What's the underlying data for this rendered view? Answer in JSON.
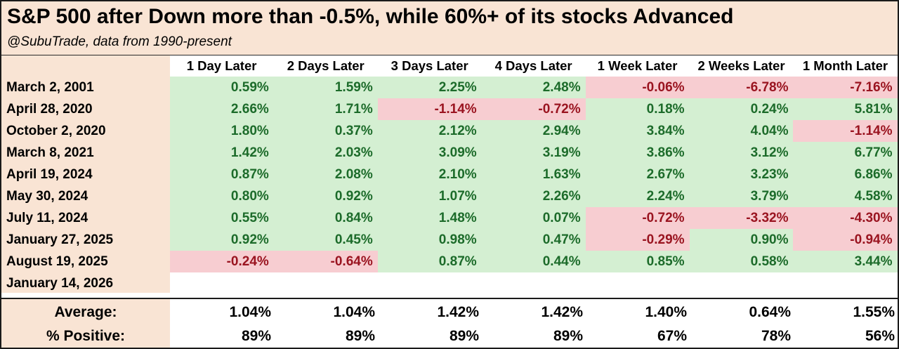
{
  "title": "S&P 500 after Down more than -0.5%, while 60%+ of its stocks Advanced",
  "subtitle": "@SubuTrade, data from 1990-present",
  "columns": [
    "1 Day Later",
    "2 Days Later",
    "3 Days Later",
    "4 Days Later",
    "1 Week Later",
    "2 Weeks Later",
    "1 Month Later"
  ],
  "rows": [
    {
      "date": "March 2, 2001",
      "values": [
        "0.59%",
        "1.59%",
        "2.25%",
        "2.48%",
        "-0.06%",
        "-6.78%",
        "-7.16%"
      ]
    },
    {
      "date": "April 28, 2020",
      "values": [
        "2.66%",
        "1.71%",
        "-1.14%",
        "-0.72%",
        "0.18%",
        "0.24%",
        "5.81%"
      ]
    },
    {
      "date": "October 2, 2020",
      "values": [
        "1.80%",
        "0.37%",
        "2.12%",
        "2.94%",
        "3.84%",
        "4.04%",
        "-1.14%"
      ]
    },
    {
      "date": "March 8, 2021",
      "values": [
        "1.42%",
        "2.03%",
        "3.09%",
        "3.19%",
        "3.86%",
        "3.12%",
        "6.77%"
      ]
    },
    {
      "date": "April 19, 2024",
      "values": [
        "0.87%",
        "2.08%",
        "2.10%",
        "1.63%",
        "2.67%",
        "3.23%",
        "6.86%"
      ]
    },
    {
      "date": "May 30, 2024",
      "values": [
        "0.80%",
        "0.92%",
        "1.07%",
        "2.26%",
        "2.24%",
        "3.79%",
        "4.58%"
      ]
    },
    {
      "date": "July 11, 2024",
      "values": [
        "0.55%",
        "0.84%",
        "1.48%",
        "0.07%",
        "-0.72%",
        "-3.32%",
        "-4.30%"
      ]
    },
    {
      "date": "January 27, 2025",
      "values": [
        "0.92%",
        "0.45%",
        "0.98%",
        "0.47%",
        "-0.29%",
        "0.90%",
        "-0.94%"
      ]
    },
    {
      "date": "August 19, 2025",
      "values": [
        "-0.24%",
        "-0.64%",
        "0.87%",
        "0.44%",
        "0.85%",
        "0.58%",
        "3.44%"
      ]
    },
    {
      "date": "January 14, 2026",
      "values": [
        "",
        "",
        "",
        "",
        "",
        "",
        ""
      ]
    }
  ],
  "summary": {
    "average": {
      "label": "Average:",
      "values": [
        "1.04%",
        "1.04%",
        "1.42%",
        "1.42%",
        "1.40%",
        "0.64%",
        "1.55%"
      ]
    },
    "positive": {
      "label": "% Positive:",
      "values": [
        "89%",
        "89%",
        "89%",
        "89%",
        "67%",
        "78%",
        "56%"
      ]
    }
  },
  "colors": {
    "header_bg": "#f9e4d4",
    "positive_bg": "#d4efd2",
    "positive_text": "#1c6b2a",
    "negative_bg": "#f7cdd1",
    "negative_text": "#9a1420"
  }
}
